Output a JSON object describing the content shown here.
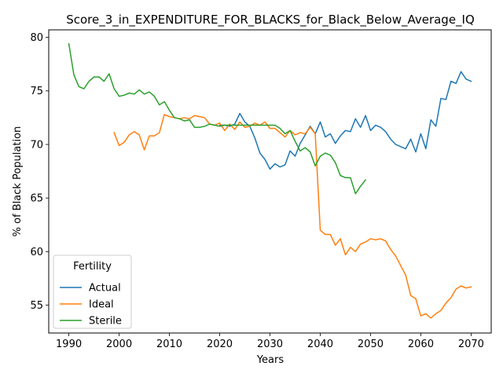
{
  "chart_data": {
    "type": "line",
    "title": "Score_3_in_EXPENDITURE_FOR_BLACKS_for_Black_Below_Average_IQ",
    "xlabel": "Years",
    "ylabel": "% of Black Population",
    "xlim": [
      1986,
      2074
    ],
    "ylim": [
      52.4,
      80.7
    ],
    "xticks": [
      1990,
      2000,
      2010,
      2020,
      2030,
      2040,
      2050,
      2060,
      2070
    ],
    "yticks": [
      55,
      60,
      65,
      70,
      75,
      80
    ],
    "grid": false,
    "legend": {
      "title": "Fertility",
      "placement": "lower-left"
    },
    "series": [
      {
        "name": "Actual",
        "color": "#1f77b4",
        "x": [
          2020,
          2021,
          2022,
          2023,
          2024,
          2025,
          2026,
          2027,
          2028,
          2029,
          2030,
          2031,
          2032,
          2033,
          2034,
          2035,
          2036,
          2037,
          2038,
          2039,
          2040,
          2041,
          2042,
          2043,
          2044,
          2045,
          2046,
          2047,
          2048,
          2049,
          2050,
          2051,
          2052,
          2053,
          2054,
          2055,
          2056,
          2057,
          2058,
          2059,
          2060,
          2061,
          2062,
          2063,
          2064,
          2065,
          2066,
          2067,
          2068,
          2069,
          2070
        ],
        "values": [
          71.8,
          71.8,
          71.7,
          71.9,
          72.9,
          72.1,
          71.7,
          70.6,
          69.2,
          68.6,
          67.7,
          68.2,
          67.9,
          68.1,
          69.4,
          68.9,
          70.1,
          70.9,
          71.7,
          71.0,
          72.1,
          70.7,
          71.0,
          70.1,
          70.8,
          71.3,
          71.2,
          72.4,
          71.6,
          72.7,
          71.3,
          71.8,
          71.6,
          71.2,
          70.5,
          70.0,
          69.8,
          69.6,
          70.5,
          69.3,
          71.0,
          69.6,
          72.3,
          71.7,
          74.3,
          74.2,
          75.9,
          75.7,
          76.8,
          76.1,
          75.9
        ]
      },
      {
        "name": "Ideal",
        "color": "#ff7f0e",
        "x": [
          1999,
          2000,
          2001,
          2002,
          2003,
          2004,
          2005,
          2006,
          2007,
          2008,
          2009,
          2010,
          2011,
          2012,
          2013,
          2014,
          2015,
          2016,
          2017,
          2018,
          2019,
          2020,
          2021,
          2022,
          2023,
          2024,
          2025,
          2026,
          2027,
          2028,
          2029,
          2030,
          2031,
          2032,
          2033,
          2034,
          2035,
          2036,
          2037,
          2038,
          2039,
          2040,
          2041,
          2042,
          2043,
          2044,
          2045,
          2046,
          2047,
          2048,
          2049,
          2050,
          2051,
          2052,
          2053,
          2054,
          2055,
          2056,
          2057,
          2058,
          2059,
          2060,
          2061,
          2062,
          2063,
          2064,
          2065,
          2066,
          2067,
          2068,
          2069,
          2070
        ],
        "values": [
          71.1,
          69.9,
          70.2,
          70.9,
          71.2,
          70.9,
          69.5,
          70.8,
          70.8,
          71.1,
          72.8,
          72.6,
          72.5,
          72.4,
          72.5,
          72.4,
          72.7,
          72.6,
          72.5,
          71.9,
          71.8,
          72.0,
          71.3,
          71.9,
          71.4,
          72.1,
          71.6,
          71.7,
          72.0,
          71.8,
          72.1,
          71.5,
          71.5,
          71.1,
          70.7,
          71.3,
          70.9,
          71.1,
          71.0,
          71.6,
          71.0,
          62.0,
          61.6,
          61.6,
          60.6,
          61.2,
          59.7,
          60.4,
          60.0,
          60.7,
          60.9,
          61.2,
          61.1,
          61.2,
          61.0,
          60.2,
          59.6,
          58.7,
          57.8,
          55.9,
          55.6,
          54.0,
          54.2,
          53.8,
          54.2,
          54.5,
          55.2,
          55.7,
          56.5,
          56.8,
          56.6,
          56.7
        ]
      },
      {
        "name": "Sterile",
        "color": "#2ca02c",
        "x": [
          1990,
          1991,
          1992,
          1993,
          1994,
          1995,
          1996,
          1997,
          1998,
          1999,
          2000,
          2001,
          2002,
          2003,
          2004,
          2005,
          2006,
          2007,
          2008,
          2009,
          2010,
          2011,
          2012,
          2013,
          2014,
          2015,
          2016,
          2017,
          2018,
          2019,
          2020,
          2021,
          2022,
          2023,
          2024,
          2025,
          2026,
          2027,
          2028,
          2029,
          2030,
          2031,
          2032,
          2033,
          2034,
          2035,
          2036,
          2037,
          2038,
          2039,
          2040,
          2041,
          2042,
          2043,
          2044,
          2045,
          2046,
          2047,
          2048,
          2049
        ],
        "values": [
          79.4,
          76.5,
          75.4,
          75.2,
          75.9,
          76.3,
          76.3,
          75.9,
          76.6,
          75.2,
          74.5,
          74.6,
          74.8,
          74.7,
          75.1,
          74.7,
          74.9,
          74.5,
          73.7,
          74.0,
          73.2,
          72.5,
          72.4,
          72.2,
          72.3,
          71.6,
          71.6,
          71.7,
          71.9,
          71.8,
          71.7,
          71.8,
          71.8,
          71.8,
          71.8,
          71.8,
          71.8,
          71.8,
          71.8,
          71.8,
          71.8,
          71.8,
          71.5,
          71.0,
          71.3,
          70.3,
          69.4,
          69.7,
          69.3,
          68.0,
          68.9,
          69.2,
          69.0,
          68.3,
          67.1,
          66.9,
          66.9,
          65.4,
          66.1,
          66.7
        ]
      }
    ]
  }
}
